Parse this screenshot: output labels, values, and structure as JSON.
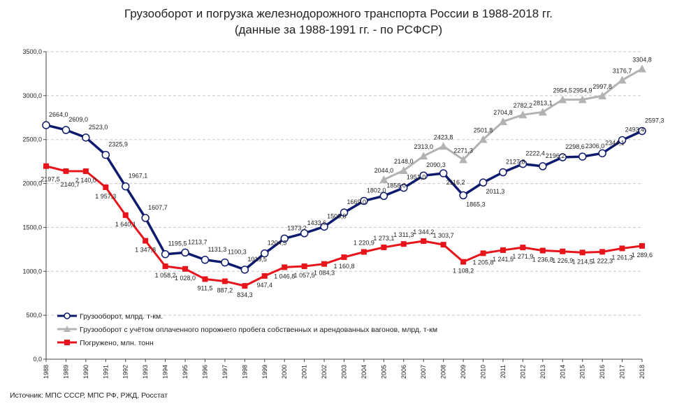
{
  "title_line1": "Грузооборот и погрузка железнодорожного транспорта России в 1988-2018 гг.",
  "title_line2": "(данные за 1988-1991 гг. - по РСФСР)",
  "source": "Источник: МПС СССР, МПС РФ, РЖД, Росстат",
  "chart_data": {
    "type": "line",
    "x": [
      1988,
      1989,
      1990,
      1991,
      1992,
      1993,
      1994,
      1995,
      1996,
      1997,
      1998,
      1999,
      2000,
      2001,
      2002,
      2003,
      2004,
      2005,
      2006,
      2007,
      2008,
      2009,
      2010,
      2011,
      2012,
      2013,
      2014,
      2015,
      2016,
      2017,
      2018
    ],
    "ylim": [
      0,
      3500
    ],
    "yticks": [
      "0,0",
      "500,0",
      "1000,0",
      "1500,0",
      "2000,0",
      "2500,0",
      "3000,0",
      "3500,0"
    ],
    "grid": true,
    "legend_position": "bottom-left",
    "series": [
      {
        "name": "Грузооборот, млрд. т-км.",
        "color": "#0d1a6e",
        "marker": "circle",
        "values": [
          2664.0,
          2609.0,
          2523.0,
          2325.9,
          1967.1,
          1607.7,
          1195.5,
          1213.7,
          1131.3,
          1100.3,
          1019.5,
          1204.5,
          1373.2,
          1433.6,
          1508.8,
          1669.0,
          1802.0,
          1858.0,
          1951.0,
          2090.3,
          2116.2,
          1865.3,
          2011.3,
          2127.8,
          2222.4,
          2196.2,
          2298.6,
          2306.0,
          2344.1,
          2493.4,
          2597.3
        ],
        "labels": [
          "2664,0",
          "2609,0",
          "2523,0",
          "2325,9",
          "1967,1",
          "1607,7",
          "1195,5",
          "1213,7",
          "1131,3",
          "1100,3",
          "1019,5",
          "1204,5",
          "1373,2",
          "1433,6",
          "1508,8",
          "1669,0",
          "1802,0",
          "1858,0",
          "1951,0",
          "2090,3",
          "2116,2",
          "1865,3",
          "2011,3",
          "2127,8",
          "2222,4",
          "2196,2",
          "2298,6",
          "2306,0",
          "2344,1",
          "2493,4",
          "2597,3"
        ]
      },
      {
        "name": "Грузооборот с учётом оплаченного порожнего пробега собственных и арендованных вагонов, млрд. т-км",
        "color": "#b3b3b3",
        "marker": "triangle",
        "values": [
          null,
          null,
          null,
          null,
          null,
          null,
          null,
          null,
          null,
          null,
          null,
          null,
          null,
          null,
          null,
          null,
          null,
          2044.0,
          2148.0,
          2313.0,
          2423.8,
          2271.3,
          2501.8,
          2704.8,
          2782.2,
          2813.1,
          2954.5,
          2954.9,
          2997.8,
          3176.7,
          3304.8
        ],
        "labels": [
          null,
          null,
          null,
          null,
          null,
          null,
          null,
          null,
          null,
          null,
          null,
          null,
          null,
          null,
          null,
          null,
          null,
          "2044,0",
          "2148,0",
          "2313,0",
          "2423,8",
          "2271,3",
          "2501,8",
          "2704,8",
          "2782,2",
          "2813,1",
          "2954,5",
          "2954,9",
          "2997,8",
          "3176,7",
          "3304,8"
        ]
      },
      {
        "name": "Погружено, млн. тонн",
        "color": "#e8141b",
        "marker": "square",
        "values": [
          2197.5,
          2140.7,
          2140.0,
          1957.3,
          1640.1,
          1347.8,
          1058.2,
          1028.0,
          911.5,
          887.2,
          834.3,
          947.4,
          1046.8,
          1057.5,
          1084.3,
          1160.8,
          1220.9,
          1273.1,
          1311.3,
          1344.2,
          1303.7,
          1108.2,
          1205.8,
          1241.5,
          1271.9,
          1236.8,
          1226.9,
          1214.5,
          1222.3,
          1261.3,
          1289.6
        ],
        "labels": [
          "2197,5",
          "2140,7",
          "2 140,0",
          "1 957,3",
          "1 640,1",
          "1 347,8",
          "1 058,2",
          "1 028,0",
          "911,5",
          "887,2",
          "834,3",
          "947,4",
          "1 046,8",
          "1 057,5",
          "1 084,3",
          "1 160,8",
          "1 220,9",
          "1 273,1",
          "1 311,3",
          "1 344,2",
          "1 303,7",
          "1 108,2",
          "1 205,8",
          "1 241,5",
          "1 271,9",
          "1 236,8",
          "1 226,9",
          "1 214,5",
          "1 222,3",
          "1 261,3",
          "1 289,6"
        ]
      }
    ]
  }
}
